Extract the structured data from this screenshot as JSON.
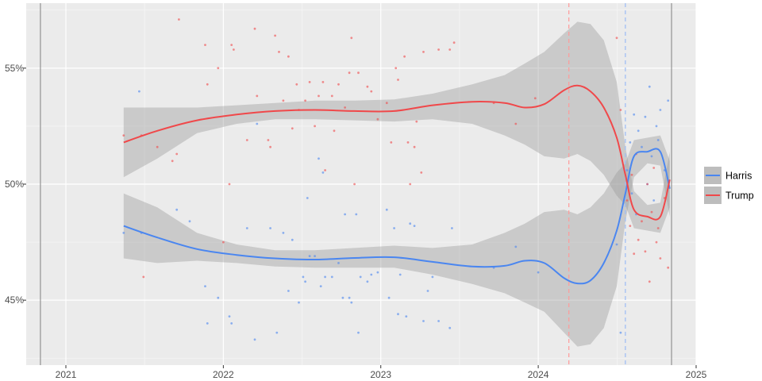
{
  "chart_data": {
    "type": "scatter",
    "title": "",
    "xlabel": "",
    "ylabel": "",
    "x_ticks": [
      "2021",
      "2022",
      "2023",
      "2024",
      "2025"
    ],
    "y_ticks": [
      "45%",
      "50%",
      "55%"
    ],
    "xlim": [
      "2020-10-01",
      "2025-01-01"
    ],
    "ylim": [
      42.2,
      57.8
    ],
    "grid": true,
    "background": "#ebebeb",
    "legend_position": "right",
    "reference_lines": [
      {
        "date": "2020-11-03",
        "style": "solid",
        "color": "#7f7f7f"
      },
      {
        "date": "2024-11-05",
        "style": "solid",
        "color": "#7f7f7f"
      },
      {
        "date": "2024-03-12",
        "style": "dashed",
        "color": "#ff9a9a"
      },
      {
        "date": "2024-07-21",
        "style": "dashed",
        "color": "#9bbcf5"
      }
    ],
    "series": [
      {
        "name": "Harris",
        "color": "#4a86f0",
        "trend": [
          [
            "2021-05-15",
            48.2
          ],
          [
            "2021-08-01",
            47.7
          ],
          [
            "2021-11-01",
            47.2
          ],
          [
            "2022-02-01",
            46.95
          ],
          [
            "2022-05-01",
            46.8
          ],
          [
            "2022-08-01",
            46.75
          ],
          [
            "2022-11-01",
            46.82
          ],
          [
            "2023-02-01",
            46.85
          ],
          [
            "2023-05-01",
            46.65
          ],
          [
            "2023-08-01",
            46.45
          ],
          [
            "2023-10-15",
            46.48
          ],
          [
            "2023-12-01",
            46.7
          ],
          [
            "2024-01-15",
            46.6
          ],
          [
            "2024-03-01",
            45.95
          ],
          [
            "2024-04-01",
            45.72
          ],
          [
            "2024-05-01",
            45.85
          ],
          [
            "2024-06-01",
            46.6
          ],
          [
            "2024-07-01",
            48.0
          ],
          [
            "2024-07-21",
            49.6
          ],
          [
            "2024-08-10",
            51.2
          ],
          [
            "2024-09-10",
            51.4
          ],
          [
            "2024-10-10",
            51.4
          ],
          [
            "2024-11-01",
            49.8
          ]
        ],
        "band": [
          [
            "2021-05-15",
            46.8,
            49.6
          ],
          [
            "2021-08-01",
            46.6,
            49.0
          ],
          [
            "2021-11-01",
            46.7,
            47.9
          ],
          [
            "2022-02-01",
            46.6,
            47.4
          ],
          [
            "2022-05-01",
            46.45,
            47.15
          ],
          [
            "2022-08-01",
            46.4,
            47.15
          ],
          [
            "2022-11-01",
            46.4,
            47.25
          ],
          [
            "2023-02-01",
            46.4,
            47.35
          ],
          [
            "2023-05-01",
            46.1,
            47.25
          ],
          [
            "2023-08-01",
            45.7,
            47.4
          ],
          [
            "2023-10-15",
            45.3,
            47.9
          ],
          [
            "2023-12-01",
            44.9,
            48.3
          ],
          [
            "2024-01-15",
            44.5,
            48.8
          ],
          [
            "2024-03-01",
            43.6,
            48.9
          ],
          [
            "2024-04-01",
            43.0,
            48.7
          ],
          [
            "2024-05-01",
            43.1,
            49.0
          ],
          [
            "2024-06-01",
            43.8,
            49.6
          ],
          [
            "2024-07-01",
            45.6,
            50.5
          ],
          [
            "2024-07-21",
            48.4,
            50.9
          ],
          [
            "2024-08-10",
            50.3,
            51.9
          ],
          [
            "2024-09-10",
            50.9,
            52.0
          ],
          [
            "2024-10-10",
            50.8,
            52.1
          ],
          [
            "2024-11-01",
            48.6,
            51.0
          ]
        ],
        "points": [
          [
            "2021-05-15",
            47.9
          ],
          [
            "2021-06-20",
            54.0
          ],
          [
            "2021-06-25",
            47.9
          ],
          [
            "2021-09-15",
            48.9
          ],
          [
            "2021-10-15",
            48.4
          ],
          [
            "2021-11-20",
            45.6
          ],
          [
            "2021-11-25",
            44.0
          ],
          [
            "2021-12-20",
            45.1
          ],
          [
            "2022-01-15",
            44.3
          ],
          [
            "2022-01-20",
            44.0
          ],
          [
            "2022-02-25",
            48.1
          ],
          [
            "2022-03-15",
            43.3
          ],
          [
            "2022-03-20",
            52.6
          ],
          [
            "2022-04-20",
            48.1
          ],
          [
            "2022-05-05",
            43.6
          ],
          [
            "2022-05-20",
            47.9
          ],
          [
            "2022-06-01",
            45.4
          ],
          [
            "2022-06-10",
            47.6
          ],
          [
            "2022-06-25",
            44.9
          ],
          [
            "2022-07-05",
            46.0
          ],
          [
            "2022-07-10",
            45.8
          ],
          [
            "2022-07-15",
            49.4
          ],
          [
            "2022-07-20",
            46.9
          ],
          [
            "2022-08-01",
            46.9
          ],
          [
            "2022-08-10",
            51.1
          ],
          [
            "2022-08-15",
            45.6
          ],
          [
            "2022-08-20",
            50.5
          ],
          [
            "2022-08-25",
            46.0
          ],
          [
            "2022-09-10",
            46.0
          ],
          [
            "2022-09-25",
            46.6
          ],
          [
            "2022-10-05",
            45.1
          ],
          [
            "2022-10-10",
            48.7
          ],
          [
            "2022-10-20",
            45.1
          ],
          [
            "2022-10-25",
            44.9
          ],
          [
            "2022-11-05",
            48.7
          ],
          [
            "2022-11-10",
            43.6
          ],
          [
            "2022-11-15",
            46.0
          ],
          [
            "2022-12-01",
            45.8
          ],
          [
            "2022-12-10",
            46.1
          ],
          [
            "2022-12-25",
            46.2
          ],
          [
            "2023-01-15",
            48.9
          ],
          [
            "2023-01-20",
            45.1
          ],
          [
            "2023-02-01",
            48.1
          ],
          [
            "2023-02-10",
            44.4
          ],
          [
            "2023-02-15",
            46.1
          ],
          [
            "2023-03-01",
            44.3
          ],
          [
            "2023-03-10",
            48.3
          ],
          [
            "2023-03-20",
            48.2
          ],
          [
            "2023-04-10",
            44.1
          ],
          [
            "2023-04-20",
            45.4
          ],
          [
            "2023-05-01",
            46.0
          ],
          [
            "2023-05-15",
            44.1
          ],
          [
            "2023-06-10",
            43.8
          ],
          [
            "2023-06-15",
            48.1
          ],
          [
            "2023-09-20",
            46.4
          ],
          [
            "2023-11-10",
            47.3
          ],
          [
            "2024-01-01",
            46.2
          ],
          [
            "2024-07-01",
            47.4
          ],
          [
            "2024-07-10",
            43.6
          ],
          [
            "2024-07-25",
            50.6
          ],
          [
            "2024-08-01",
            51.8
          ],
          [
            "2024-08-10",
            53.0
          ],
          [
            "2024-08-20",
            52.3
          ],
          [
            "2024-08-28",
            51.6
          ],
          [
            "2024-09-05",
            52.9
          ],
          [
            "2024-09-15",
            54.2
          ],
          [
            "2024-09-20",
            51.2
          ],
          [
            "2024-10-01",
            52.5
          ],
          [
            "2024-10-10",
            53.2
          ],
          [
            "2024-10-20",
            50.6
          ],
          [
            "2024-10-28",
            53.6
          ],
          [
            "2024-08-05",
            49.6
          ],
          [
            "2024-09-25",
            49.3
          ],
          [
            "2024-10-05",
            51.9
          ],
          [
            "2024-08-15",
            48.7
          ],
          [
            "2024-09-10",
            50.0
          ]
        ]
      },
      {
        "name": "Trump",
        "color": "#f0484a",
        "trend": [
          [
            "2021-05-15",
            51.8
          ],
          [
            "2021-08-01",
            52.3
          ],
          [
            "2021-11-01",
            52.75
          ],
          [
            "2022-02-01",
            53.0
          ],
          [
            "2022-05-01",
            53.15
          ],
          [
            "2022-08-01",
            53.2
          ],
          [
            "2022-11-01",
            53.15
          ],
          [
            "2023-02-01",
            53.15
          ],
          [
            "2023-05-01",
            53.4
          ],
          [
            "2023-08-01",
            53.55
          ],
          [
            "2023-10-15",
            53.5
          ],
          [
            "2023-12-01",
            53.3
          ],
          [
            "2024-01-15",
            53.45
          ],
          [
            "2024-03-01",
            54.05
          ],
          [
            "2024-04-01",
            54.25
          ],
          [
            "2024-05-01",
            54.0
          ],
          [
            "2024-06-01",
            53.3
          ],
          [
            "2024-07-01",
            52.0
          ],
          [
            "2024-07-21",
            50.4
          ],
          [
            "2024-08-10",
            48.9
          ],
          [
            "2024-09-10",
            48.6
          ],
          [
            "2024-10-10",
            48.6
          ],
          [
            "2024-11-01",
            50.2
          ]
        ],
        "band": [
          [
            "2021-05-15",
            50.3,
            53.3
          ],
          [
            "2021-08-01",
            51.1,
            53.3
          ],
          [
            "2021-11-01",
            52.2,
            53.3
          ],
          [
            "2022-02-01",
            52.6,
            53.4
          ],
          [
            "2022-05-01",
            52.8,
            53.5
          ],
          [
            "2022-08-01",
            52.8,
            53.6
          ],
          [
            "2022-11-01",
            52.75,
            53.6
          ],
          [
            "2023-02-01",
            52.7,
            53.65
          ],
          [
            "2023-05-01",
            52.8,
            53.9
          ],
          [
            "2023-08-01",
            52.6,
            54.3
          ],
          [
            "2023-10-15",
            52.1,
            54.7
          ],
          [
            "2023-12-01",
            51.7,
            55.2
          ],
          [
            "2024-01-15",
            51.2,
            55.7
          ],
          [
            "2024-03-01",
            51.1,
            56.5
          ],
          [
            "2024-04-01",
            51.3,
            57.0
          ],
          [
            "2024-05-01",
            51.0,
            56.9
          ],
          [
            "2024-06-01",
            50.4,
            56.2
          ],
          [
            "2024-07-01",
            49.5,
            54.4
          ],
          [
            "2024-07-21",
            49.1,
            51.6
          ],
          [
            "2024-08-10",
            48.1,
            49.7
          ],
          [
            "2024-09-10",
            48.0,
            49.1
          ],
          [
            "2024-10-10",
            47.9,
            49.2
          ],
          [
            "2024-11-01",
            49.0,
            51.4
          ]
        ],
        "points": [
          [
            "2021-05-15",
            52.1
          ],
          [
            "2021-06-25",
            52.1
          ],
          [
            "2021-06-30",
            46.0
          ],
          [
            "2021-08-01",
            51.6
          ],
          [
            "2021-09-05",
            51.0
          ],
          [
            "2021-09-15",
            51.3
          ],
          [
            "2021-09-20",
            57.1
          ],
          [
            "2021-11-20",
            56.0
          ],
          [
            "2021-11-25",
            54.3
          ],
          [
            "2021-12-20",
            55.0
          ],
          [
            "2022-01-01",
            47.5
          ],
          [
            "2022-01-15",
            50.0
          ],
          [
            "2022-01-20",
            56.0
          ],
          [
            "2022-01-25",
            55.8
          ],
          [
            "2022-02-25",
            51.9
          ],
          [
            "2022-03-15",
            56.7
          ],
          [
            "2022-03-20",
            53.8
          ],
          [
            "2022-04-15",
            51.9
          ],
          [
            "2022-04-20",
            51.6
          ],
          [
            "2022-05-01",
            56.4
          ],
          [
            "2022-05-10",
            55.7
          ],
          [
            "2022-05-20",
            53.6
          ],
          [
            "2022-06-01",
            55.5
          ],
          [
            "2022-06-10",
            52.4
          ],
          [
            "2022-06-20",
            54.3
          ],
          [
            "2022-06-25",
            53.2
          ],
          [
            "2022-07-10",
            53.6
          ],
          [
            "2022-07-20",
            54.4
          ],
          [
            "2022-08-01",
            52.5
          ],
          [
            "2022-08-10",
            53.8
          ],
          [
            "2022-08-20",
            54.4
          ],
          [
            "2022-08-25",
            50.6
          ],
          [
            "2022-09-10",
            53.8
          ],
          [
            "2022-09-15",
            52.3
          ],
          [
            "2022-09-25",
            54.3
          ],
          [
            "2022-10-10",
            53.3
          ],
          [
            "2022-10-20",
            54.8
          ],
          [
            "2022-10-25",
            56.3
          ],
          [
            "2022-11-01",
            50.0
          ],
          [
            "2022-11-10",
            54.8
          ],
          [
            "2022-12-01",
            54.2
          ],
          [
            "2022-12-10",
            54.0
          ],
          [
            "2022-12-25",
            52.8
          ],
          [
            "2023-01-15",
            53.5
          ],
          [
            "2023-01-25",
            51.8
          ],
          [
            "2023-02-05",
            55.0
          ],
          [
            "2023-02-10",
            54.5
          ],
          [
            "2023-02-25",
            55.5
          ],
          [
            "2023-03-05",
            51.8
          ],
          [
            "2023-03-10",
            50.0
          ],
          [
            "2023-03-20",
            51.6
          ],
          [
            "2023-03-25",
            52.7
          ],
          [
            "2023-04-05",
            50.5
          ],
          [
            "2023-04-10",
            55.7
          ],
          [
            "2023-05-15",
            55.8
          ],
          [
            "2023-06-10",
            55.8
          ],
          [
            "2023-06-20",
            56.1
          ],
          [
            "2023-09-20",
            53.5
          ],
          [
            "2023-11-10",
            52.6
          ],
          [
            "2023-12-25",
            53.7
          ],
          [
            "2024-07-01",
            56.3
          ],
          [
            "2024-07-10",
            53.2
          ],
          [
            "2024-07-25",
            49.3
          ],
          [
            "2024-08-01",
            48.2
          ],
          [
            "2024-08-10",
            47.0
          ],
          [
            "2024-08-20",
            47.6
          ],
          [
            "2024-08-28",
            48.4
          ],
          [
            "2024-09-05",
            47.1
          ],
          [
            "2024-09-15",
            45.8
          ],
          [
            "2024-09-20",
            48.8
          ],
          [
            "2024-10-01",
            47.5
          ],
          [
            "2024-10-10",
            46.8
          ],
          [
            "2024-10-20",
            49.4
          ],
          [
            "2024-10-28",
            46.4
          ],
          [
            "2024-08-05",
            50.4
          ],
          [
            "2024-09-25",
            50.7
          ],
          [
            "2024-10-05",
            48.1
          ],
          [
            "2024-08-15",
            51.3
          ],
          [
            "2024-09-10",
            50.0
          ]
        ]
      }
    ]
  }
}
